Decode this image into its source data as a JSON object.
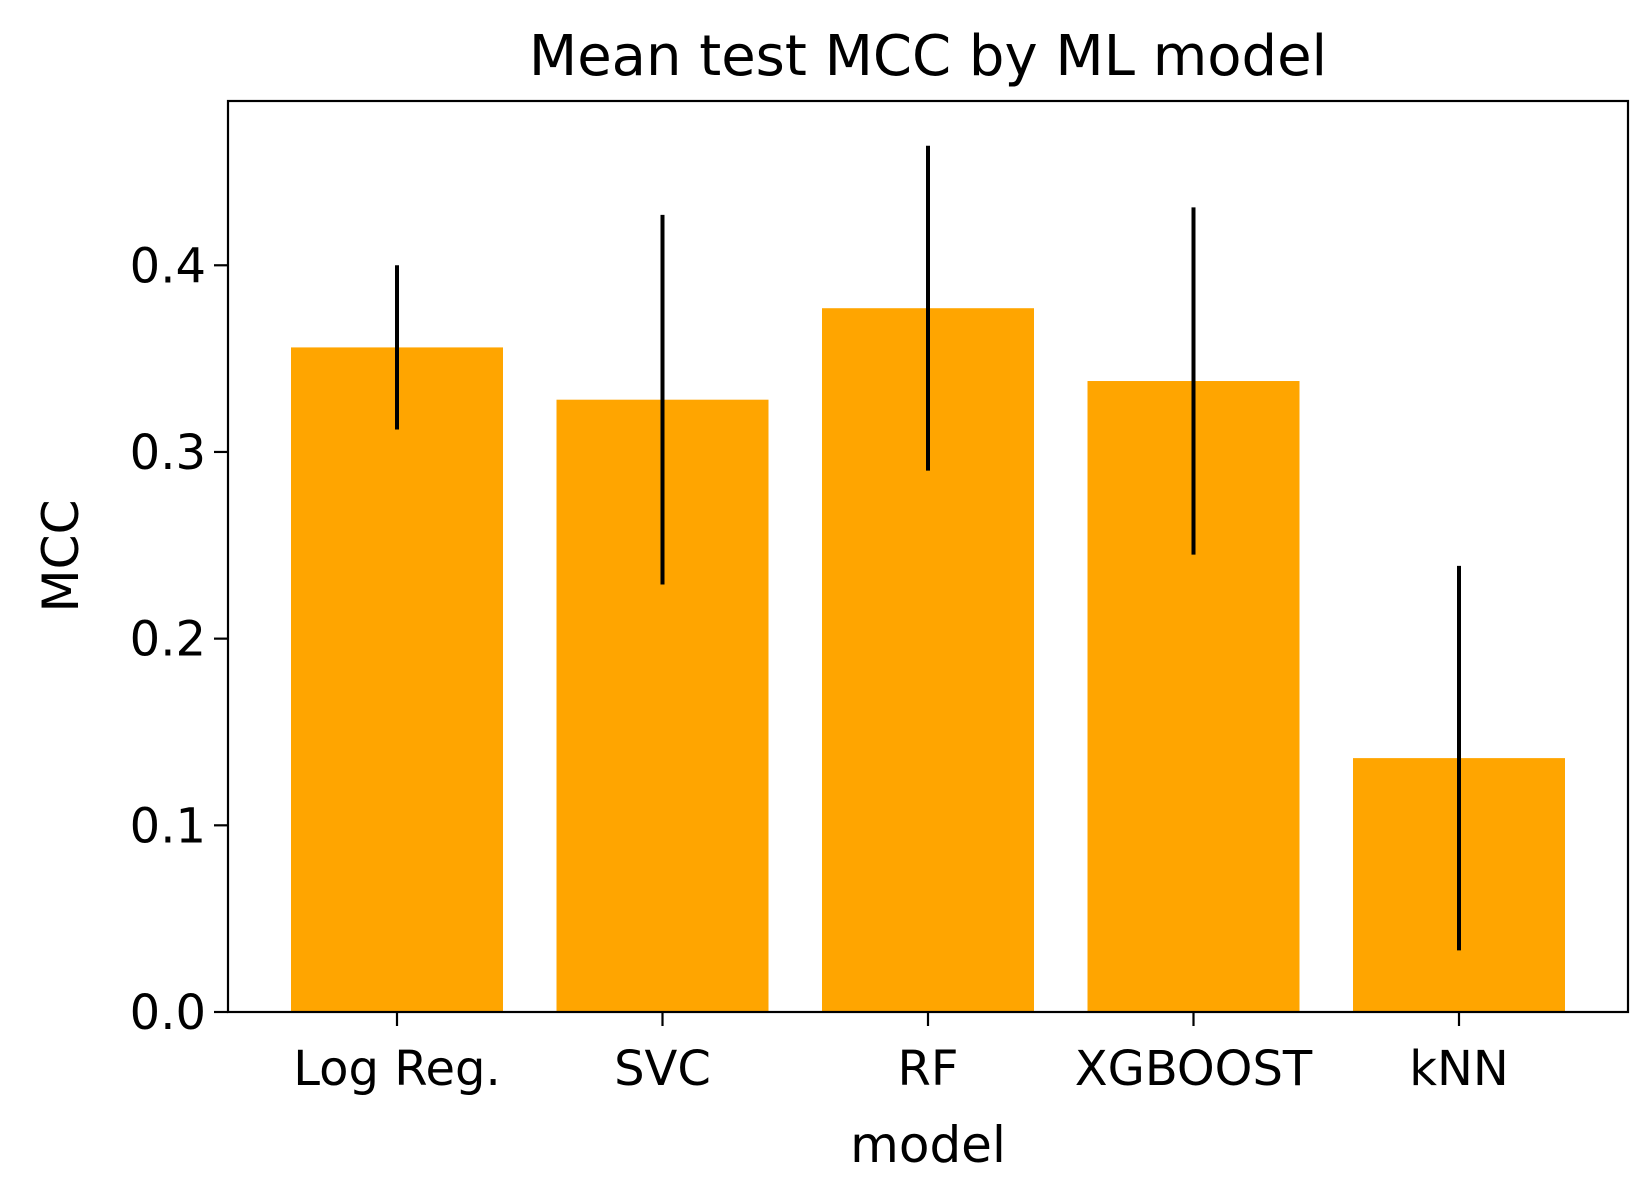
{
  "chart_data": {
    "type": "bar",
    "title": "Mean test MCC by ML model",
    "xlabel": "model",
    "ylabel": "MCC",
    "categories": [
      "Log Reg.",
      "SVC",
      "RF",
      "XGBOOST",
      "kNN"
    ],
    "values": [
      0.356,
      0.328,
      0.377,
      0.338,
      0.136
    ],
    "errors": [
      0.044,
      0.099,
      0.087,
      0.093,
      0.103
    ],
    "ylim": [
      0,
      0.488
    ],
    "yticks": [
      0.0,
      0.1,
      0.2,
      0.3,
      0.4
    ],
    "ytick_labels": [
      "0.0",
      "0.1",
      "0.2",
      "0.3",
      "0.4"
    ],
    "bar_color": "#FFA500",
    "error_color": "#000000",
    "grid": false,
    "legend": "none"
  }
}
